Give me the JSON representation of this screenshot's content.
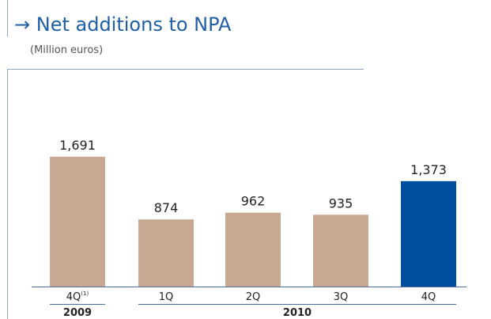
{
  "chart_data": {
    "type": "bar",
    "title": "→ Net additions to NPA",
    "subtitle": "(Million euros)",
    "categories": [
      "4Q",
      "1Q",
      "2Q",
      "3Q",
      "4Q"
    ],
    "category_superscripts": [
      "(1)",
      null,
      null,
      null,
      null
    ],
    "groups": [
      {
        "label": "2009",
        "count": 1
      },
      {
        "label": "2010",
        "count": 4
      }
    ],
    "values": [
      1691,
      874,
      962,
      935,
      1373
    ],
    "value_labels": [
      "1,691",
      "874",
      "962",
      "935",
      "1,373"
    ],
    "colors": [
      "#c8a793",
      "#c8a793",
      "#c8a793",
      "#c8a793",
      "#004f9f"
    ]
  }
}
